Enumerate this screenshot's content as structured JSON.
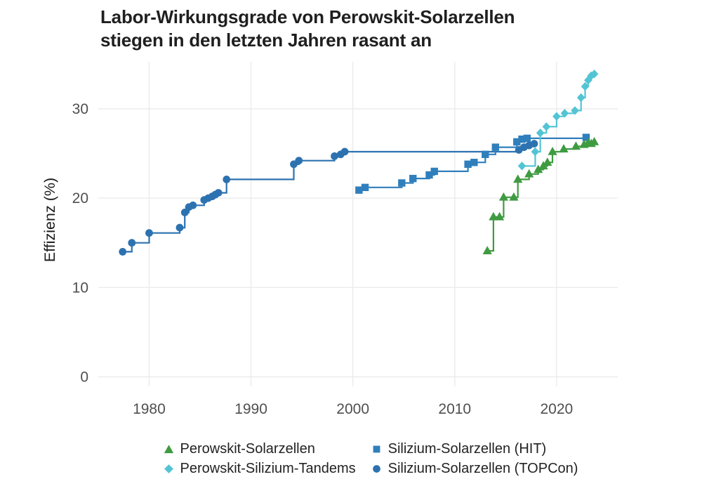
{
  "title": {
    "line1": "Labor-Wirkungsgrade von Perowskit-Solarzellen",
    "line2": "stiegen in den letzten Jahren rasant an"
  },
  "colors": {
    "grid": "#ebebeb",
    "tick_text": "#4f4f4f",
    "axis_title_text": "#1c1c1c",
    "title_text": "#1f1f1f"
  },
  "chart_data": {
    "type": "line",
    "subtype": "step-post-with-markers",
    "title": "Labor-Wirkungsgrade von Perowskit-Solarzellen stiegen in den letzten Jahren rasant an",
    "xlabel": "",
    "ylabel": "Effizienz (%)",
    "x_ticks": [
      1980,
      1990,
      2000,
      2010,
      2020
    ],
    "y_ticks": [
      0,
      10,
      20,
      30
    ],
    "x_range": [
      1975,
      2026
    ],
    "y_range": [
      0,
      35
    ],
    "grid": "on",
    "legend_position": "bottom",
    "series": [
      {
        "label": "Perowskit-Solarzellen",
        "marker": "triangle",
        "color": "#3f9b41",
        "points": [
          [
            2013.2,
            14.1
          ],
          [
            2013.8,
            17.9
          ],
          [
            2014.4,
            17.9
          ],
          [
            2014.8,
            20.1
          ],
          [
            2015.8,
            20.1
          ],
          [
            2016.2,
            22.1
          ],
          [
            2017.3,
            22.7
          ],
          [
            2018.2,
            23.2
          ],
          [
            2018.7,
            23.6
          ],
          [
            2019.1,
            24.0
          ],
          [
            2019.6,
            25.2
          ],
          [
            2020.7,
            25.5
          ],
          [
            2021.9,
            25.8
          ],
          [
            2022.7,
            26.0
          ],
          [
            2023.1,
            26.2
          ],
          [
            2023.4,
            26.1
          ],
          [
            2023.7,
            26.3
          ]
        ]
      },
      {
        "label": "Perowskit-Silizium-Tandems",
        "marker": "diamond",
        "color": "#52c4d4",
        "points": [
          [
            2016.6,
            23.6
          ],
          [
            2017.9,
            25.2
          ],
          [
            2018.4,
            27.3
          ],
          [
            2019.0,
            28.0
          ],
          [
            2020.0,
            29.15
          ],
          [
            2020.8,
            29.5
          ],
          [
            2021.8,
            29.8
          ],
          [
            2022.4,
            31.25
          ],
          [
            2022.8,
            32.5
          ],
          [
            2023.1,
            33.2
          ],
          [
            2023.4,
            33.7
          ],
          [
            2023.7,
            33.9
          ]
        ]
      },
      {
        "label": "Silizium-Solarzellen (HIT)",
        "marker": "square",
        "color": "#2f7fbc",
        "points": [
          [
            2000.6,
            20.9
          ],
          [
            2001.2,
            21.2
          ],
          [
            2004.8,
            21.7
          ],
          [
            2005.9,
            22.2
          ],
          [
            2007.5,
            22.6
          ],
          [
            2008.0,
            23.0
          ],
          [
            2011.3,
            23.8
          ],
          [
            2011.9,
            24.0
          ],
          [
            2013.0,
            24.9
          ],
          [
            2014.0,
            25.7
          ],
          [
            2016.1,
            26.3
          ],
          [
            2016.6,
            26.6
          ],
          [
            2017.1,
            26.7
          ],
          [
            2022.9,
            26.8
          ]
        ]
      },
      {
        "label": "Silizium-Solarzellen (TOPCon)",
        "marker": "circle",
        "color": "#2d72b0",
        "points": [
          [
            1977.4,
            14.0
          ],
          [
            1978.3,
            15.0
          ],
          [
            1980.0,
            16.1
          ],
          [
            1983.0,
            16.7
          ],
          [
            1983.5,
            18.4
          ],
          [
            1983.9,
            19.0
          ],
          [
            1984.3,
            19.2
          ],
          [
            1985.4,
            19.8
          ],
          [
            1985.8,
            20.0
          ],
          [
            1986.2,
            20.2
          ],
          [
            1986.5,
            20.4
          ],
          [
            1986.8,
            20.6
          ],
          [
            1987.6,
            22.1
          ],
          [
            1994.2,
            23.8
          ],
          [
            1994.7,
            24.2
          ],
          [
            1998.2,
            24.7
          ],
          [
            1998.8,
            24.9
          ],
          [
            1999.2,
            25.2
          ],
          [
            2016.3,
            25.4
          ],
          [
            2016.8,
            25.7
          ],
          [
            2017.3,
            25.9
          ],
          [
            2017.8,
            26.1
          ]
        ]
      }
    ]
  }
}
